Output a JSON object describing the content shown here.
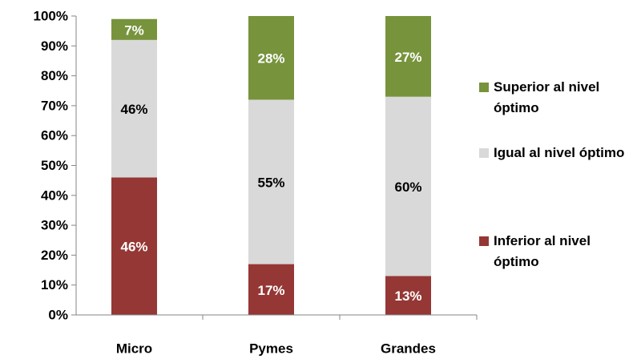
{
  "chart_data": {
    "type": "stacked-bar",
    "categories": [
      "Micro",
      "Pymes",
      "Grandes"
    ],
    "series": [
      {
        "name": "Inferior al nivel óptimo",
        "color": "#953735",
        "values": [
          46,
          17,
          13
        ],
        "value_labels": [
          "46%",
          "17%",
          "13%"
        ]
      },
      {
        "name": "Igual al nivel óptimo",
        "color": "#d9d9d9",
        "values": [
          46,
          55,
          60
        ],
        "value_labels": [
          "46%",
          "55%",
          "60%"
        ]
      },
      {
        "name": "Superior al nivel óptimo",
        "color": "#77933c",
        "values": [
          7,
          28,
          27
        ],
        "value_labels": [
          "7%",
          "28%",
          "27%"
        ]
      }
    ],
    "ylim": [
      0,
      100
    ],
    "yticks": [
      {
        "value": 0,
        "label": "0%"
      },
      {
        "value": 10,
        "label": "10%"
      },
      {
        "value": 20,
        "label": "20%"
      },
      {
        "value": 30,
        "label": "30%"
      },
      {
        "value": 40,
        "label": "40%"
      },
      {
        "value": 50,
        "label": "50%"
      },
      {
        "value": 60,
        "label": "60%"
      },
      {
        "value": 70,
        "label": "70%"
      },
      {
        "value": 80,
        "label": "80%"
      },
      {
        "value": 90,
        "label": "90%"
      },
      {
        "value": 100,
        "label": "100%"
      }
    ],
    "legend": "right"
  }
}
